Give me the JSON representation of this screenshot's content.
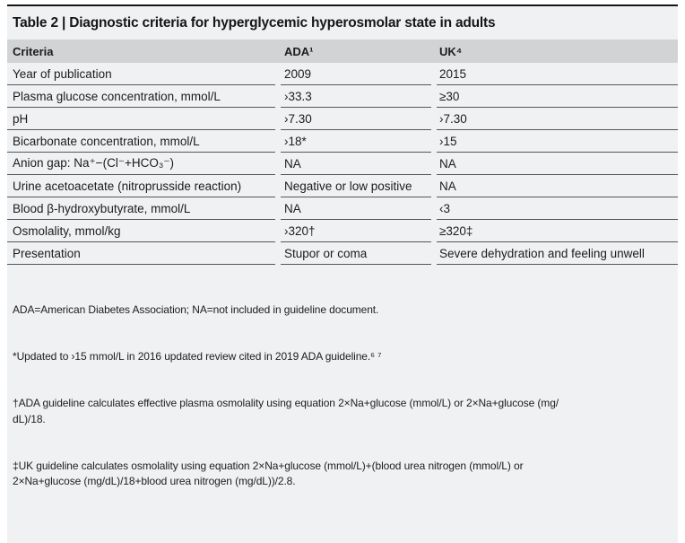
{
  "table": {
    "title": "Table 2 | Diagnostic criteria for hyperglycemic hyperosmolar state in adults",
    "columns": {
      "criteria": "Criteria",
      "ada": "ADA¹",
      "uk": "UK⁴"
    },
    "rows": [
      {
        "criteria": "Year of publication",
        "ada": "2009",
        "uk": "2015"
      },
      {
        "criteria": "Plasma glucose concentration, mmol/L",
        "ada": "›33.3",
        "uk": "≥30"
      },
      {
        "criteria": "pH",
        "ada": "›7.30",
        "uk": "›7.30"
      },
      {
        "criteria": "Bicarbonate concentration, mmol/L",
        "ada": "›18*",
        "uk": "›15"
      },
      {
        "criteria": "Anion gap: Na⁺−(Cl⁻+HCO₃⁻)",
        "ada": "NA",
        "uk": "NA"
      },
      {
        "criteria": "Urine acetoacetate (nitroprusside reaction)",
        "ada": "Negative or low positive",
        "uk": "NA"
      },
      {
        "criteria": "Blood β-hydroxybutyrate, mmol/L",
        "ada": "NA",
        "uk": "‹3"
      },
      {
        "criteria": "Osmolality, mmol/kg",
        "ada": "›320†",
        "uk": "≥320‡"
      },
      {
        "criteria": "Presentation",
        "ada": "Stupor or coma",
        "uk": "Severe dehydration and feeling unwell"
      }
    ],
    "footnotes": [
      "ADA=American Diabetes Association; NA=not included in guideline document.",
      "*Updated to ›15 mmol/L in 2016 updated review cited in 2019 ADA guideline.⁶ ⁷",
      "†ADA guideline calculates effective plasma osmolality using equation 2×Na+glucose (mmol/L) or 2×Na+glucose (mg/\ndL)/18.",
      "‡UK guideline calculates osmolality using equation 2×Na+glucose (mmol/L)+(blood urea nitrogen (mmol/L) or\n2×Na+glucose (mg/dL)/18+blood urea nitrogen (mg/dL))/2.8."
    ]
  },
  "colors": {
    "page_background": "#ffffff",
    "table_background": "#f0f1f3",
    "header_row_background": "#d1d3d5",
    "top_rule": "#161616",
    "row_rule": "#54585a",
    "text": "#1c1c1c"
  }
}
